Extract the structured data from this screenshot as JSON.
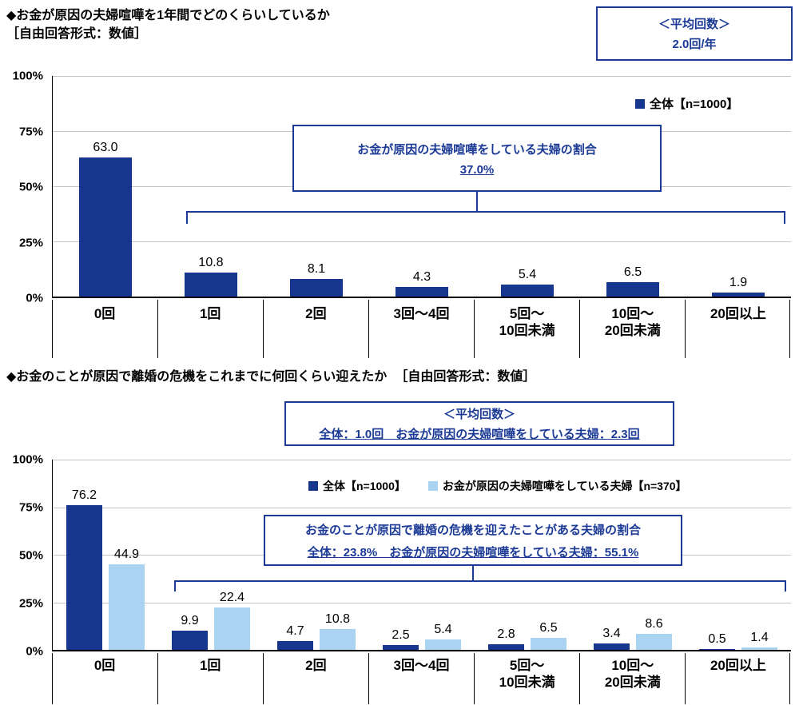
{
  "colors": {
    "navy": "#17368D",
    "light_blue": "#A9D3F0",
    "grid": "#C3C3C3",
    "accent": "#1B3A96"
  },
  "chart_data": [
    {
      "type": "bar",
      "title": "◆お金が原因の夫婦喧嘩を1年間でどのくらいしているか",
      "title_note": "［自由回答形式：数値］",
      "average_box": {
        "heading": "＜平均回数＞",
        "value": "2.0回/年"
      },
      "callout": [
        "お金が原因の夫婦喧嘩をしている夫婦の割合",
        "37.0%"
      ],
      "categories": [
        [
          "0回"
        ],
        [
          "1回"
        ],
        [
          "2回"
        ],
        [
          "3回～4回"
        ],
        [
          "5回～",
          "10回未満"
        ],
        [
          "10回～",
          "20回未満"
        ],
        [
          "20回以上"
        ]
      ],
      "series": [
        {
          "name": "全体【n=1000】",
          "color": "#17368D",
          "values": [
            63.0,
            10.8,
            8.1,
            4.3,
            5.4,
            6.5,
            1.9
          ]
        }
      ],
      "yticks": [
        "100%",
        "75%",
        "50%",
        "25%",
        "0%"
      ],
      "ylim": [
        0,
        100
      ],
      "grid": true,
      "legend_position": "top-right"
    },
    {
      "type": "bar",
      "title": "◆お金のことが原因で離婚の危機をこれまでに何回くらい迎えたか",
      "title_note": "［自由回答形式：数値］",
      "average_box": {
        "heading": "＜平均回数＞",
        "value": "全体：1.0回　お金が原因の夫婦喧嘩をしている夫婦：2.3回"
      },
      "callout": [
        "お金のことが原因で離婚の危機を迎えたことがある夫婦の割合",
        "全体：23.8%　お金が原因の夫婦喧嘩をしている夫婦：55.1%"
      ],
      "categories": [
        [
          "0回"
        ],
        [
          "1回"
        ],
        [
          "2回"
        ],
        [
          "3回～4回"
        ],
        [
          "5回～",
          "10回未満"
        ],
        [
          "10回～",
          "20回未満"
        ],
        [
          "20回以上"
        ]
      ],
      "series": [
        {
          "name": "全体【n=1000】",
          "color": "#17368D",
          "values": [
            76.2,
            9.9,
            4.7,
            2.5,
            2.8,
            3.4,
            0.5
          ]
        },
        {
          "name": "お金が原因の夫婦喧嘩をしている夫婦【n=370】",
          "color": "#A9D3F0",
          "values": [
            44.9,
            22.4,
            10.8,
            5.4,
            6.5,
            8.6,
            1.4
          ]
        }
      ],
      "yticks": [
        "100%",
        "75%",
        "50%",
        "25%",
        "0%"
      ],
      "ylim": [
        0,
        100
      ],
      "grid": true,
      "legend_position": "top-center"
    }
  ]
}
